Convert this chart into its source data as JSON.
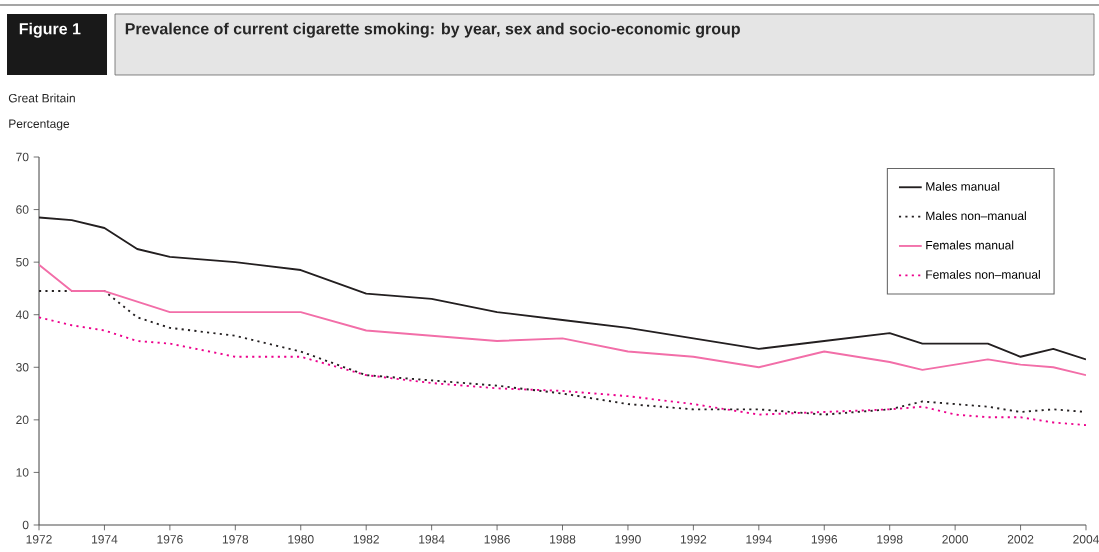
{
  "chart_data": {
    "type": "line",
    "title": "Prevalence of current cigarette smoking: by year, sex and socio-economic group",
    "ylabel": "Percentage",
    "annotations": [
      "Figure 1",
      "Great Britain"
    ],
    "x": [
      1972,
      1973,
      1974,
      1975,
      1976,
      1978,
      1980,
      1982,
      1984,
      1986,
      1988,
      1990,
      1992,
      1994,
      1996,
      1998,
      1999,
      2000,
      2001,
      2002,
      2003,
      2004
    ],
    "series": [
      {
        "name": "Males manual",
        "color": "#231f20",
        "line_style": "solid",
        "values": [
          58.5,
          58,
          56.5,
          52.5,
          51,
          50,
          48.5,
          44,
          43,
          40.5,
          39,
          37.5,
          35.5,
          33.5,
          35,
          36.5,
          34.5,
          34.5,
          34.5,
          32,
          33.5,
          31.5
        ]
      },
      {
        "name": "Males non–manual",
        "color": "#231f20",
        "line_style": "dotted",
        "values": [
          44.5,
          44.5,
          44.5,
          39.5,
          37.5,
          36,
          33,
          28.5,
          27.5,
          26.5,
          25,
          23,
          22,
          22,
          21,
          22,
          23.5,
          23,
          22.5,
          21.5,
          22,
          21.5
        ]
      },
      {
        "name": "Females manual",
        "color": "#f26ea8",
        "line_style": "solid",
        "values": [
          49.5,
          44.5,
          44.5,
          42.5,
          40.5,
          40.5,
          40.5,
          37,
          36,
          35,
          35.5,
          33,
          32,
          30,
          33,
          31,
          29.5,
          30.5,
          31.5,
          30.5,
          30,
          28.5
        ]
      },
      {
        "name": "Females non–manual",
        "color": "#ec008c",
        "line_style": "dotted",
        "values": [
          39.5,
          38,
          37,
          35,
          34.5,
          32,
          32,
          28.5,
          27,
          26,
          25.5,
          24.5,
          23,
          21,
          21.5,
          22,
          22.5,
          21,
          20.5,
          20.5,
          19.5,
          19
        ]
      }
    ],
    "xlim": [
      1972,
      2004
    ],
    "xticks": [
      1972,
      1974,
      1976,
      1978,
      1980,
      1982,
      1984,
      1986,
      1988,
      1990,
      1992,
      1994,
      1996,
      1998,
      2000,
      2002,
      2004
    ],
    "ylim": [
      0,
      70
    ],
    "yticks": [
      0,
      10,
      20,
      30,
      40,
      50,
      60,
      70
    ],
    "grid": false,
    "legend": "top right"
  }
}
